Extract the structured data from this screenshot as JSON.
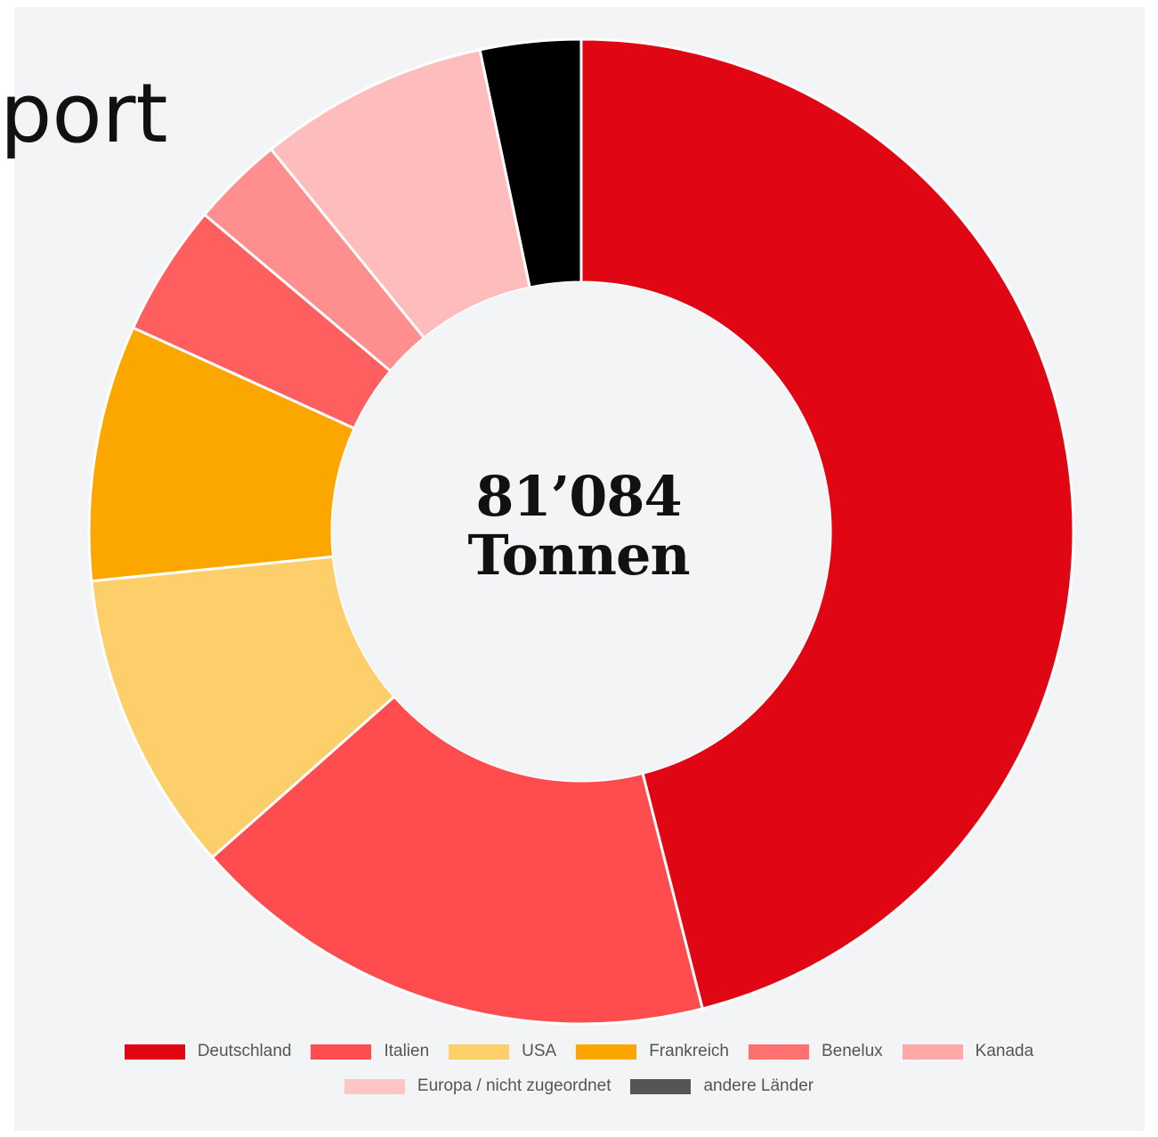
{
  "header": {
    "title_fragment": "port"
  },
  "center": {
    "value": "81’084",
    "unit": "Tonnen"
  },
  "chart_data": {
    "type": "pie",
    "variant": "donut",
    "total_label": "81’084 Tonnen",
    "categories": [
      "Deutschland",
      "Italien",
      "USA",
      "Frankreich",
      "Benelux",
      "Kanada",
      "Europa / nicht zugeordnet",
      "andere Länder"
    ],
    "values": [
      48.8,
      18.5,
      10.5,
      8.9,
      4.6,
      3.2,
      8.0,
      3.5
    ],
    "unit": "percent (estimated)",
    "colors": [
      "#e10613",
      "#ff4d4f",
      "#fdcf6a",
      "#fca600",
      "#ff5f5f",
      "#ff8f8f",
      "#ffbcbc",
      "#000000"
    ],
    "legend_colors": [
      "#e10613",
      "#ff4d4f",
      "#fdcf6a",
      "#fca600",
      "#ff7070",
      "#ffa8a8",
      "#ffc4c4",
      "#555555"
    ],
    "legend_position": "bottom",
    "legend_rows": [
      [
        0,
        1,
        2,
        3,
        4,
        5
      ],
      [
        6,
        7
      ]
    ],
    "start_angle_deg": 0,
    "direction": "clockwise"
  }
}
